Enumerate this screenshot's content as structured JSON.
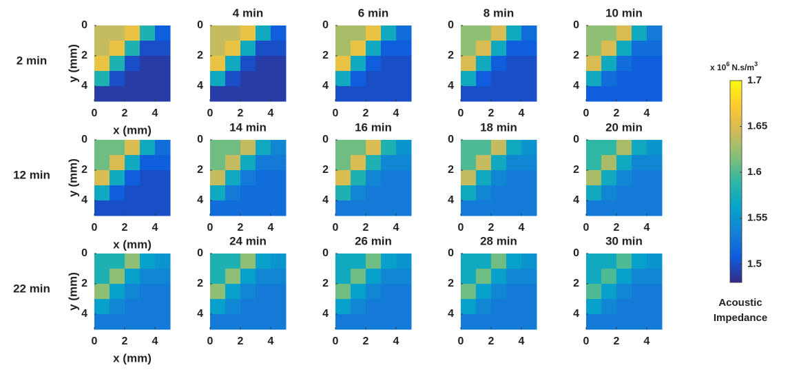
{
  "chart_data": [
    {
      "type": "heatmap",
      "title": "2 min",
      "xlabel": "x (mm)",
      "ylabel": "y (mm)",
      "xlim": [
        0,
        5
      ],
      "ylim": [
        0,
        5
      ],
      "xticks": [
        0,
        2,
        4
      ],
      "yticks": [
        0,
        2,
        4
      ],
      "z": [
        [
          1.64,
          1.64,
          1.66,
          1.58,
          1.51
        ],
        [
          1.64,
          1.66,
          1.58,
          1.5,
          1.5
        ],
        [
          1.66,
          1.58,
          1.5,
          1.49,
          1.49
        ],
        [
          1.58,
          1.5,
          1.49,
          1.49,
          1.49
        ],
        [
          1.49,
          1.49,
          1.49,
          1.49,
          1.49
        ]
      ]
    },
    {
      "type": "heatmap",
      "title": "4 min",
      "xlim": [
        0,
        5
      ],
      "ylim": [
        0,
        5
      ],
      "xticks": [
        0,
        2,
        4
      ],
      "yticks": [
        0,
        2,
        4
      ],
      "z": [
        [
          1.64,
          1.64,
          1.66,
          1.57,
          1.51
        ],
        [
          1.64,
          1.66,
          1.57,
          1.5,
          1.5
        ],
        [
          1.66,
          1.57,
          1.5,
          1.49,
          1.49
        ],
        [
          1.57,
          1.5,
          1.49,
          1.49,
          1.49
        ],
        [
          1.49,
          1.49,
          1.49,
          1.49,
          1.49
        ]
      ]
    },
    {
      "type": "heatmap",
      "title": "6 min",
      "xlim": [
        0,
        5
      ],
      "ylim": [
        0,
        5
      ],
      "xticks": [
        0,
        2,
        4
      ],
      "yticks": [
        0,
        2,
        4
      ],
      "z": [
        [
          1.63,
          1.63,
          1.66,
          1.57,
          1.52
        ],
        [
          1.63,
          1.66,
          1.57,
          1.51,
          1.51
        ],
        [
          1.66,
          1.57,
          1.51,
          1.5,
          1.5
        ],
        [
          1.57,
          1.51,
          1.5,
          1.5,
          1.5
        ],
        [
          1.5,
          1.5,
          1.5,
          1.5,
          1.5
        ]
      ]
    },
    {
      "type": "heatmap",
      "title": "8 min",
      "xlim": [
        0,
        5
      ],
      "ylim": [
        0,
        5
      ],
      "xticks": [
        0,
        2,
        4
      ],
      "yticks": [
        0,
        2,
        4
      ],
      "z": [
        [
          1.62,
          1.62,
          1.65,
          1.57,
          1.52
        ],
        [
          1.62,
          1.65,
          1.57,
          1.51,
          1.51
        ],
        [
          1.65,
          1.57,
          1.51,
          1.5,
          1.5
        ],
        [
          1.57,
          1.51,
          1.5,
          1.5,
          1.5
        ],
        [
          1.5,
          1.5,
          1.5,
          1.5,
          1.5
        ]
      ]
    },
    {
      "type": "heatmap",
      "title": "10 min",
      "xlim": [
        0,
        5
      ],
      "ylim": [
        0,
        5
      ],
      "xticks": [
        0,
        2,
        4
      ],
      "yticks": [
        0,
        2,
        4
      ],
      "z": [
        [
          1.62,
          1.62,
          1.65,
          1.57,
          1.53
        ],
        [
          1.62,
          1.65,
          1.57,
          1.52,
          1.52
        ],
        [
          1.65,
          1.57,
          1.52,
          1.51,
          1.51
        ],
        [
          1.57,
          1.52,
          1.51,
          1.51,
          1.51
        ],
        [
          1.51,
          1.51,
          1.51,
          1.51,
          1.51
        ]
      ]
    },
    {
      "type": "heatmap",
      "title": "12 min",
      "xlabel": "x (mm)",
      "ylabel": "y (mm)",
      "xlim": [
        0,
        5
      ],
      "ylim": [
        0,
        5
      ],
      "xticks": [
        0,
        2,
        4
      ],
      "yticks": [
        0,
        2,
        4
      ],
      "z": [
        [
          1.61,
          1.61,
          1.65,
          1.57,
          1.52
        ],
        [
          1.61,
          1.65,
          1.57,
          1.51,
          1.51
        ],
        [
          1.65,
          1.57,
          1.51,
          1.5,
          1.5
        ],
        [
          1.57,
          1.51,
          1.5,
          1.5,
          1.5
        ],
        [
          1.5,
          1.5,
          1.5,
          1.5,
          1.5
        ]
      ]
    },
    {
      "type": "heatmap",
      "title": "14 min",
      "xlim": [
        0,
        5
      ],
      "ylim": [
        0,
        5
      ],
      "xticks": [
        0,
        2,
        4
      ],
      "yticks": [
        0,
        2,
        4
      ],
      "z": [
        [
          1.61,
          1.61,
          1.64,
          1.57,
          1.54
        ],
        [
          1.61,
          1.64,
          1.57,
          1.53,
          1.53
        ],
        [
          1.64,
          1.57,
          1.53,
          1.52,
          1.52
        ],
        [
          1.57,
          1.53,
          1.52,
          1.52,
          1.52
        ],
        [
          1.52,
          1.52,
          1.52,
          1.52,
          1.52
        ]
      ]
    },
    {
      "type": "heatmap",
      "title": "16 min",
      "xlim": [
        0,
        5
      ],
      "ylim": [
        0,
        5
      ],
      "xticks": [
        0,
        2,
        4
      ],
      "yticks": [
        0,
        2,
        4
      ],
      "z": [
        [
          1.61,
          1.61,
          1.65,
          1.58,
          1.55
        ],
        [
          1.61,
          1.65,
          1.58,
          1.54,
          1.54
        ],
        [
          1.65,
          1.58,
          1.54,
          1.53,
          1.53
        ],
        [
          1.58,
          1.54,
          1.53,
          1.53,
          1.53
        ],
        [
          1.53,
          1.53,
          1.53,
          1.53,
          1.53
        ]
      ]
    },
    {
      "type": "heatmap",
      "title": "18 min",
      "xlim": [
        0,
        5
      ],
      "ylim": [
        0,
        5
      ],
      "xticks": [
        0,
        2,
        4
      ],
      "yticks": [
        0,
        2,
        4
      ],
      "z": [
        [
          1.6,
          1.6,
          1.64,
          1.57,
          1.55
        ],
        [
          1.6,
          1.64,
          1.57,
          1.54,
          1.54
        ],
        [
          1.64,
          1.57,
          1.54,
          1.53,
          1.53
        ],
        [
          1.57,
          1.54,
          1.53,
          1.53,
          1.53
        ],
        [
          1.53,
          1.53,
          1.53,
          1.53,
          1.53
        ]
      ]
    },
    {
      "type": "heatmap",
      "title": "20 min",
      "xlim": [
        0,
        5
      ],
      "ylim": [
        0,
        5
      ],
      "xticks": [
        0,
        2,
        4
      ],
      "yticks": [
        0,
        2,
        4
      ],
      "z": [
        [
          1.59,
          1.59,
          1.63,
          1.57,
          1.55
        ],
        [
          1.59,
          1.63,
          1.57,
          1.54,
          1.54
        ],
        [
          1.63,
          1.57,
          1.54,
          1.53,
          1.53
        ],
        [
          1.57,
          1.54,
          1.53,
          1.53,
          1.53
        ],
        [
          1.53,
          1.53,
          1.53,
          1.53,
          1.53
        ]
      ]
    },
    {
      "type": "heatmap",
      "title": "22 min",
      "xlabel": "x (mm)",
      "ylabel": "y (mm)",
      "xlim": [
        0,
        5
      ],
      "ylim": [
        0,
        5
      ],
      "xticks": [
        0,
        2,
        4
      ],
      "yticks": [
        0,
        2,
        4
      ],
      "z": [
        [
          1.58,
          1.58,
          1.62,
          1.56,
          1.55
        ],
        [
          1.58,
          1.62,
          1.56,
          1.54,
          1.54
        ],
        [
          1.62,
          1.56,
          1.54,
          1.53,
          1.53
        ],
        [
          1.56,
          1.54,
          1.53,
          1.53,
          1.53
        ],
        [
          1.53,
          1.53,
          1.53,
          1.53,
          1.53
        ]
      ]
    },
    {
      "type": "heatmap",
      "title": "24 min",
      "xlim": [
        0,
        5
      ],
      "ylim": [
        0,
        5
      ],
      "xticks": [
        0,
        2,
        4
      ],
      "yticks": [
        0,
        2,
        4
      ],
      "z": [
        [
          1.58,
          1.58,
          1.62,
          1.56,
          1.55
        ],
        [
          1.58,
          1.62,
          1.56,
          1.54,
          1.54
        ],
        [
          1.62,
          1.56,
          1.54,
          1.53,
          1.53
        ],
        [
          1.56,
          1.54,
          1.53,
          1.53,
          1.53
        ],
        [
          1.53,
          1.53,
          1.53,
          1.53,
          1.53
        ]
      ]
    },
    {
      "type": "heatmap",
      "title": "26 min",
      "xlim": [
        0,
        5
      ],
      "ylim": [
        0,
        5
      ],
      "xticks": [
        0,
        2,
        4
      ],
      "yticks": [
        0,
        2,
        4
      ],
      "z": [
        [
          1.57,
          1.57,
          1.61,
          1.56,
          1.55
        ],
        [
          1.57,
          1.61,
          1.56,
          1.54,
          1.54
        ],
        [
          1.61,
          1.56,
          1.54,
          1.53,
          1.53
        ],
        [
          1.56,
          1.54,
          1.53,
          1.53,
          1.53
        ],
        [
          1.53,
          1.53,
          1.53,
          1.53,
          1.53
        ]
      ]
    },
    {
      "type": "heatmap",
      "title": "28 min",
      "xlim": [
        0,
        5
      ],
      "ylim": [
        0,
        5
      ],
      "xticks": [
        0,
        2,
        4
      ],
      "yticks": [
        0,
        2,
        4
      ],
      "z": [
        [
          1.57,
          1.57,
          1.61,
          1.56,
          1.55
        ],
        [
          1.57,
          1.61,
          1.56,
          1.54,
          1.54
        ],
        [
          1.61,
          1.56,
          1.54,
          1.53,
          1.53
        ],
        [
          1.56,
          1.54,
          1.53,
          1.53,
          1.53
        ],
        [
          1.53,
          1.53,
          1.53,
          1.53,
          1.53
        ]
      ]
    },
    {
      "type": "heatmap",
      "title": "30 min",
      "xlim": [
        0,
        5
      ],
      "ylim": [
        0,
        5
      ],
      "xticks": [
        0,
        2,
        4
      ],
      "yticks": [
        0,
        2,
        4
      ],
      "z": [
        [
          1.57,
          1.57,
          1.6,
          1.56,
          1.55
        ],
        [
          1.57,
          1.6,
          1.56,
          1.54,
          1.54
        ],
        [
          1.6,
          1.56,
          1.54,
          1.53,
          1.53
        ],
        [
          1.56,
          1.54,
          1.53,
          1.53,
          1.53
        ],
        [
          1.53,
          1.53,
          1.53,
          1.53,
          1.53
        ]
      ]
    }
  ],
  "colorbar": {
    "unit_base": "x 10",
    "unit_exp": "6",
    "unit_rest": "N.s/m",
    "unit_exp2": "3",
    "label_lines": [
      "Acoustic",
      "Impedance"
    ],
    "clim": [
      1.48,
      1.7
    ],
    "ticks": [
      1.5,
      1.55,
      1.6,
      1.65,
      1.7
    ],
    "colormap": [
      "#352a87",
      "#0f5cdd",
      "#1481d6",
      "#06a4ca",
      "#2eb7a4",
      "#87bf77",
      "#d1bb59",
      "#fec832",
      "#f9fb0e"
    ]
  }
}
